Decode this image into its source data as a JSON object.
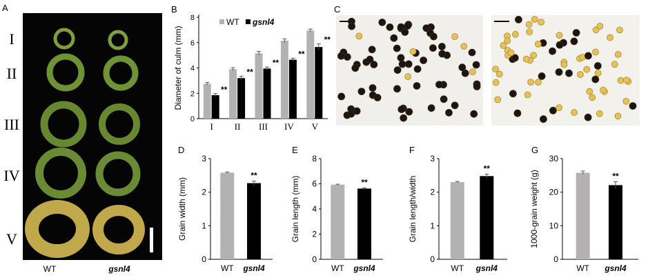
{
  "colors": {
    "wt": "#b3b1b2",
    "mutant": "#000000",
    "photo_bg": "#050505",
    "ring": "#7a9a3a"
  },
  "panel_a": {
    "letter": "A",
    "row_labels": [
      "I",
      "II",
      "III",
      "IV",
      "V"
    ],
    "col_labels": [
      "WT",
      "gsnl4"
    ],
    "description_icon": "culm-cross-section-photo"
  },
  "panel_c": {
    "letter": "C",
    "description_icon": "pollen-grain-micrograph"
  },
  "chart_data": [
    {
      "panel": "B",
      "type": "bar",
      "ylabel": "Diameter of culm (mm)",
      "categories": [
        "I",
        "II",
        "III",
        "IV",
        "V"
      ],
      "ylim": [
        0,
        8
      ],
      "yticks": [
        "0",
        "2",
        "4",
        "6",
        "8"
      ],
      "series": [
        {
          "name": "WT",
          "values": [
            2.75,
            3.9,
            5.15,
            6.15,
            6.95
          ],
          "errors": [
            0.1,
            0.12,
            0.15,
            0.15,
            0.12
          ]
        },
        {
          "name": "gsnl4",
          "values": [
            1.85,
            3.2,
            3.95,
            4.65,
            5.65
          ],
          "errors": [
            0.12,
            0.15,
            0.12,
            0.12,
            0.25
          ]
        }
      ],
      "significance": [
        "**",
        "**",
        "**",
        "**",
        "**"
      ],
      "legend": "top",
      "grid": false
    },
    {
      "panel": "D",
      "type": "bar",
      "ylabel": "Grain width  (mm)",
      "categories": [
        "WT",
        "gsnl4"
      ],
      "values": [
        2.58,
        2.27
      ],
      "errors": [
        0.02,
        0.06
      ],
      "ylim": [
        0,
        3
      ],
      "yticks": [
        "0",
        "1",
        "2",
        "3"
      ],
      "significance": [
        "",
        "**"
      ],
      "grid": false
    },
    {
      "panel": "E",
      "type": "bar",
      "ylabel": "Grain length (mm)",
      "categories": [
        "WT",
        "gsnl4"
      ],
      "values": [
        5.93,
        5.62
      ],
      "errors": [
        0.04,
        0.06
      ],
      "ylim": [
        0,
        8
      ],
      "yticks": [
        "0",
        "2",
        "4",
        "6",
        "8"
      ],
      "significance": [
        "",
        "**"
      ],
      "grid": false
    },
    {
      "panel": "F",
      "type": "bar",
      "ylabel": "Grain length/width",
      "categories": [
        "WT",
        "gsnl4"
      ],
      "values": [
        2.3,
        2.48
      ],
      "errors": [
        0.02,
        0.06
      ],
      "ylim": [
        0,
        3
      ],
      "yticks": [
        "0",
        "1",
        "2",
        "3"
      ],
      "significance": [
        "",
        "**"
      ],
      "grid": false
    },
    {
      "panel": "G",
      "type": "bar",
      "ylabel": "1000-grain weight (g)",
      "categories": [
        "WT",
        "gsnl4"
      ],
      "values": [
        25.8,
        22.1
      ],
      "errors": [
        0.5,
        1.0
      ],
      "ylim": [
        0,
        30
      ],
      "yticks": [
        "0",
        "10",
        "20",
        "30"
      ],
      "significance": [
        "",
        "**"
      ],
      "grid": false
    }
  ]
}
